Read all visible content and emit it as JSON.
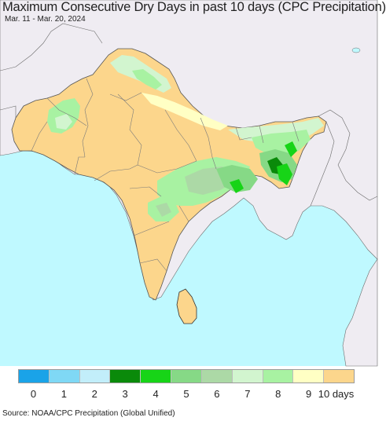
{
  "title": "Maximum Consecutive Dry Days in past 10 days (CPC Precipitation)",
  "subtitle": "Mar. 11 - Mar. 20, 2024",
  "source": "Source: NOAA/CPC Precipitation (Global Unified)",
  "legend": {
    "colors": [
      "#1aa3e8",
      "#7fd8f5",
      "#c2eefa",
      "#0a8a0a",
      "#17d417",
      "#86d986",
      "#acd9a6",
      "#d2f5cf",
      "#a8f2a2",
      "#ffffc4",
      "#fcd68c"
    ],
    "labels": [
      "0",
      "1",
      "2",
      "3",
      "4",
      "5",
      "6",
      "7",
      "8",
      "9",
      "10 days"
    ]
  },
  "map": {
    "ocean_color": "#bff9ff",
    "outside_land_color": "#efecf2",
    "dominant_land_color": "#fcd68c"
  }
}
